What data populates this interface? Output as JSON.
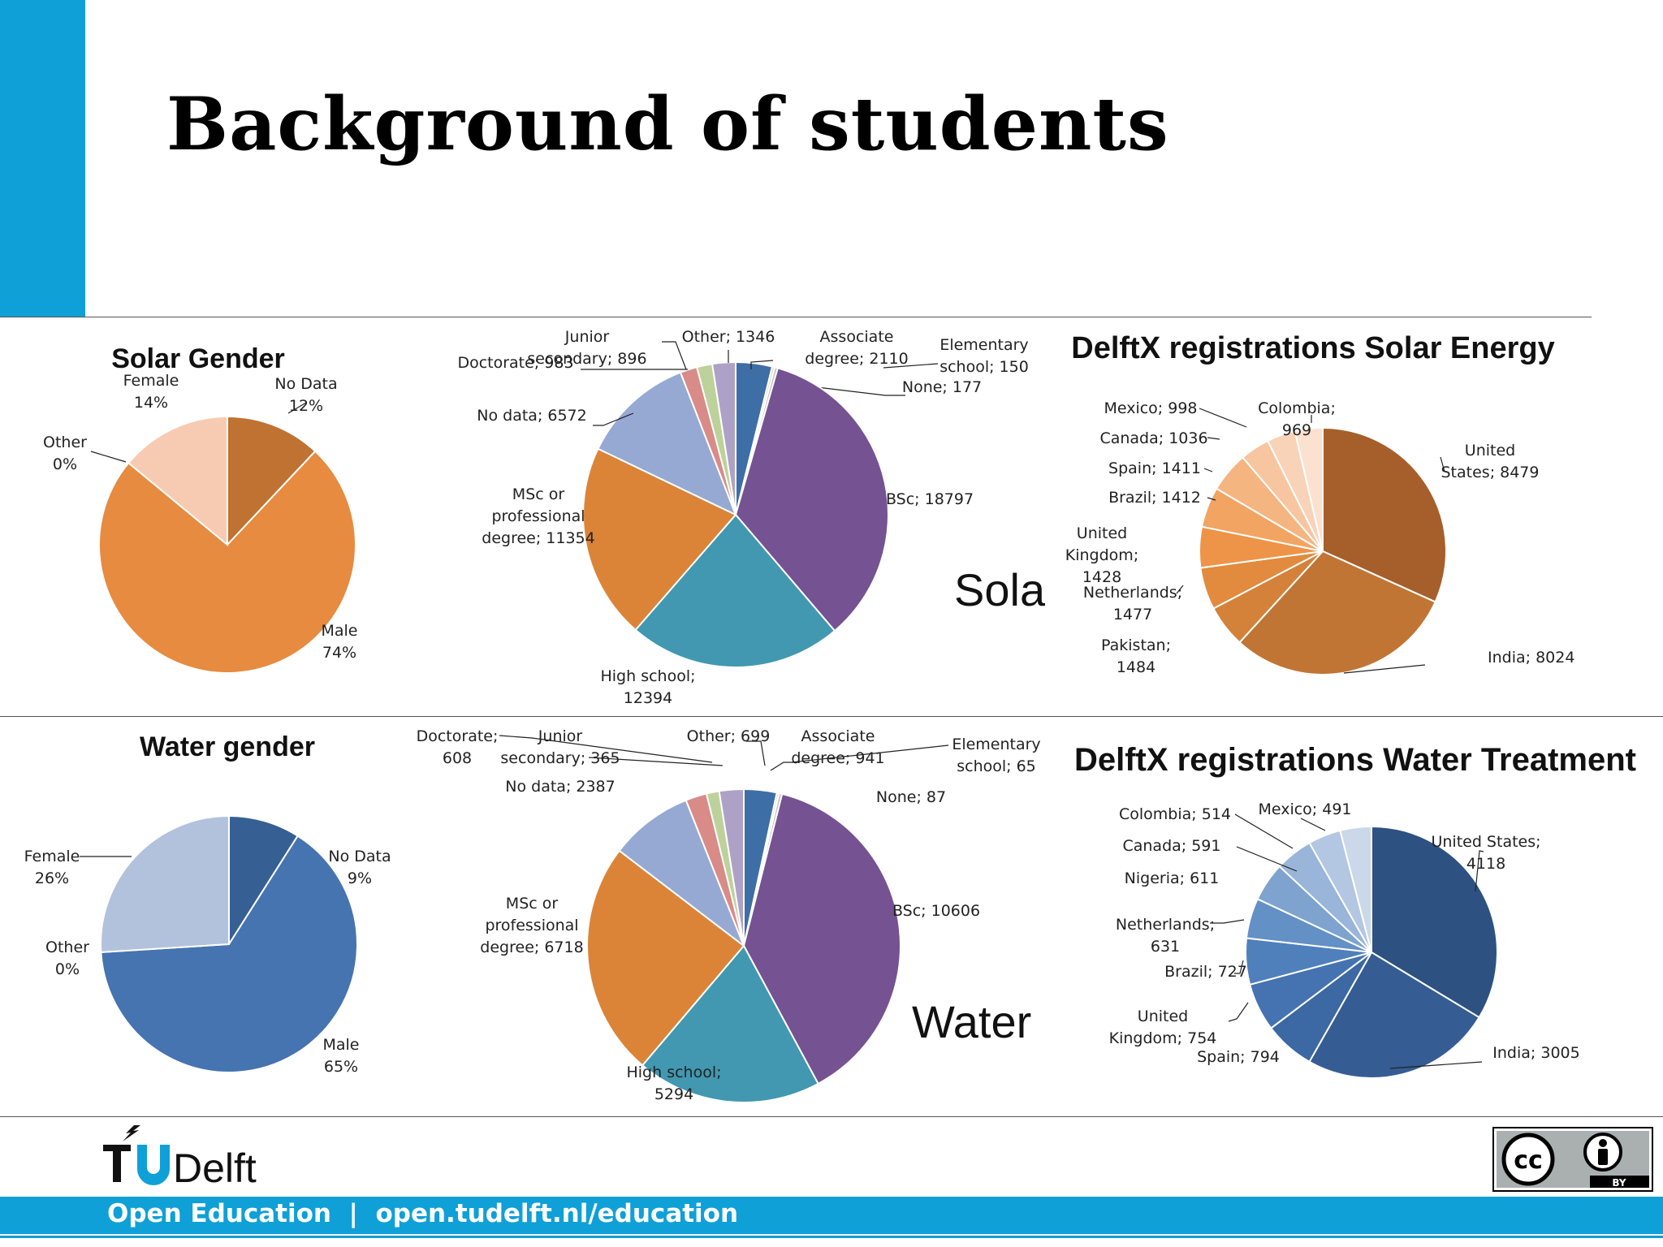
{
  "slide": {
    "title": "Background of students",
    "footer": "Open Education  |  open.tudelft.nl/education",
    "logo_text": "TUDelft",
    "license_label": "BY",
    "accent_color": "#0fa0d7"
  },
  "chart_data": [
    {
      "id": "solar-gender",
      "type": "pie",
      "title": "Solar Gender",
      "slices": [
        {
          "name": "No Data",
          "value": 12,
          "color": "#bf7232",
          "label": [
            "No Data",
            "12%"
          ]
        },
        {
          "name": "Male",
          "value": 74,
          "color": "#e68b3f",
          "label": [
            "Male",
            "74%"
          ]
        },
        {
          "name": "Other",
          "value": 0,
          "color": "#f0c09d",
          "label": [
            "Other",
            "0%"
          ]
        },
        {
          "name": "Female",
          "value": 14,
          "color": "#f7cbb2",
          "label": [
            "Female",
            "14%"
          ]
        }
      ]
    },
    {
      "id": "solar-edu",
      "type": "pie",
      "title": "",
      "overlay_text": "Solar",
      "slices": [
        {
          "name": "Associate degree",
          "value": 2110,
          "color": "#3e6ea6",
          "label": [
            "Associate",
            "degree; 2110"
          ]
        },
        {
          "name": "Elementary school",
          "value": 150,
          "color": "#e0d7b2",
          "label": [
            "Elementary",
            "school; 150"
          ]
        },
        {
          "name": "None",
          "value": 177,
          "color": "#c4c0c0",
          "label": [
            "None; 177"
          ]
        },
        {
          "name": "BSc",
          "value": 18797,
          "color": "#755292",
          "label": [
            "BSc; 18797"
          ]
        },
        {
          "name": "High school",
          "value": 12394,
          "color": "#4198b0",
          "label": [
            "High school;",
            "12394"
          ]
        },
        {
          "name": "MSc or professional degree",
          "value": 11354,
          "color": "#db8438",
          "label": [
            "MSc or",
            "professional",
            "degree; 11354"
          ]
        },
        {
          "name": "No data",
          "value": 6572,
          "color": "#95a9d3",
          "label": [
            "No data; 6572"
          ]
        },
        {
          "name": "Doctorate",
          "value": 983,
          "color": "#d98b88",
          "label": [
            "Doctorate; 983"
          ]
        },
        {
          "name": "Junior secondary",
          "value": 896,
          "color": "#bcd29a",
          "label": [
            "Junior",
            "secondary; 896"
          ]
        },
        {
          "name": "Other",
          "value": 1346,
          "color": "#aea1c8",
          "label": [
            "Other; 1346"
          ]
        }
      ]
    },
    {
      "id": "solar-country",
      "type": "pie",
      "title": "DelftX registrations Solar Energy",
      "slices": [
        {
          "name": "United States",
          "value": 8479,
          "color": "#a65f2a",
          "label": [
            "United",
            "States; 8479"
          ]
        },
        {
          "name": "India",
          "value": 8024,
          "color": "#c07535",
          "label": [
            "India; 8024"
          ]
        },
        {
          "name": "Pakistan",
          "value": 1484,
          "color": "#d4823a",
          "label": [
            "Pakistan;",
            "1484"
          ]
        },
        {
          "name": "Netherlands",
          "value": 1477,
          "color": "#e28a3e",
          "label": [
            "Netherlands;",
            "1477"
          ]
        },
        {
          "name": "United Kingdom",
          "value": 1428,
          "color": "#ee9448",
          "label": [
            "United",
            "Kingdom;",
            "1428"
          ]
        },
        {
          "name": "Brazil",
          "value": 1412,
          "color": "#f2a462",
          "label": [
            "Brazil; 1412"
          ]
        },
        {
          "name": "Spain",
          "value": 1411,
          "color": "#f5b581",
          "label": [
            "Spain; 1411"
          ]
        },
        {
          "name": "Canada",
          "value": 1036,
          "color": "#f7c59f",
          "label": [
            "Canada; 1036"
          ]
        },
        {
          "name": "Mexico",
          "value": 998,
          "color": "#f9d3b7",
          "label": [
            "Mexico; 998"
          ]
        },
        {
          "name": "Colombia",
          "value": 969,
          "color": "#fbe1cf",
          "label": [
            "Colombia;",
            "969"
          ]
        }
      ]
    },
    {
      "id": "water-gender",
      "type": "pie",
      "title": "Water gender",
      "slices": [
        {
          "name": "No Data",
          "value": 9,
          "color": "#365f94",
          "label": [
            "No Data",
            "9%"
          ]
        },
        {
          "name": "Male",
          "value": 65,
          "color": "#4574b0",
          "label": [
            "Male",
            "65%"
          ]
        },
        {
          "name": "Other",
          "value": 0,
          "color": "#8ea4c7",
          "label": [
            "Other",
            "0%"
          ]
        },
        {
          "name": "Female",
          "value": 26,
          "color": "#b3c2dc",
          "label": [
            "Female",
            "26%"
          ]
        }
      ]
    },
    {
      "id": "water-edu",
      "type": "pie",
      "title": "",
      "overlay_text": "Water",
      "slices": [
        {
          "name": "Associate degree",
          "value": 941,
          "color": "#3e6ea6",
          "label": [
            "Associate",
            "degree; 941"
          ]
        },
        {
          "name": "Elementary school",
          "value": 65,
          "color": "#e0d7b2",
          "label": [
            "Elementary",
            "school; 65"
          ]
        },
        {
          "name": "None",
          "value": 87,
          "color": "#c4c0c0",
          "label": [
            "None; 87"
          ]
        },
        {
          "name": "BSc",
          "value": 10606,
          "color": "#755292",
          "label": [
            "BSc; 10606"
          ]
        },
        {
          "name": "High school",
          "value": 5294,
          "color": "#4198b0",
          "label": [
            "High school;",
            "5294"
          ]
        },
        {
          "name": "MSc or professional degree",
          "value": 6718,
          "color": "#db8438",
          "label": [
            "MSc or",
            "professional",
            "degree; 6718"
          ]
        },
        {
          "name": "No data",
          "value": 2387,
          "color": "#95a9d3",
          "label": [
            "No data; 2387"
          ]
        },
        {
          "name": "Doctorate",
          "value": 608,
          "color": "#d98b88",
          "label": [
            "Doctorate;",
            "608"
          ]
        },
        {
          "name": "Junior secondary",
          "value": 365,
          "color": "#bcd29a",
          "label": [
            "Junior",
            "secondary; 365"
          ]
        },
        {
          "name": "Other",
          "value": 699,
          "color": "#aea1c8",
          "label": [
            "Other; 699"
          ]
        }
      ]
    },
    {
      "id": "water-country",
      "type": "pie",
      "title": "DelftX registrations Water Treatment",
      "slices": [
        {
          "name": "United States",
          "value": 4118,
          "color": "#2d5281",
          "label": [
            "United States;",
            "4118"
          ]
        },
        {
          "name": "India",
          "value": 3005,
          "color": "#355d93",
          "label": [
            "India; 3005"
          ]
        },
        {
          "name": "Spain",
          "value": 794,
          "color": "#3c68a3",
          "label": [
            "Spain; 794"
          ]
        },
        {
          "name": "United Kingdom",
          "value": 754,
          "color": "#4573b1",
          "label": [
            "United",
            "Kingdom; 754"
          ]
        },
        {
          "name": "Brazil",
          "value": 727,
          "color": "#5080bb",
          "label": [
            "Brazil; 727"
          ]
        },
        {
          "name": "Netherlands",
          "value": 631,
          "color": "#6390c5",
          "label": [
            "Netherlands;",
            "631"
          ]
        },
        {
          "name": "Nigeria",
          "value": 611,
          "color": "#7ea3cf",
          "label": [
            "Nigeria; 611"
          ]
        },
        {
          "name": "Canada",
          "value": 591,
          "color": "#99b5d9",
          "label": [
            "Canada; 591"
          ]
        },
        {
          "name": "Colombia",
          "value": 514,
          "color": "#b3c7e2",
          "label": [
            "Colombia; 514"
          ]
        },
        {
          "name": "Mexico",
          "value": 491,
          "color": "#cad8ea",
          "label": [
            "Mexico; 491"
          ]
        }
      ]
    }
  ]
}
